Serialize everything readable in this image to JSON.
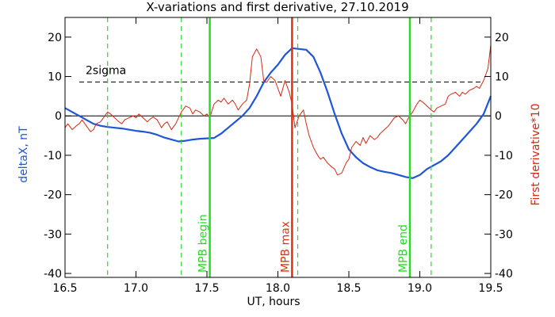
{
  "chart_data": {
    "type": "line",
    "title": "X-variations and first derivative, 27.10.2019",
    "xlabel": "UT, hours",
    "ylabel_left": "deltaX, nT",
    "ylabel_right": "First derivative*10",
    "xlim": [
      16.5,
      19.5
    ],
    "ylim": [
      -41,
      25
    ],
    "xticks": [
      16.5,
      17.0,
      17.5,
      18.0,
      18.5,
      19.0,
      19.5
    ],
    "xtick_labels": [
      "16.5",
      "17.0",
      "17.5",
      "18.0",
      "18.5",
      "19.0",
      "19.5"
    ],
    "yticks": [
      20,
      10,
      0,
      -10,
      -20,
      -30,
      -40
    ],
    "ytick_labels": [
      "20",
      "10",
      "0",
      "-10",
      "-20",
      "-30",
      "-40"
    ],
    "grid": false,
    "colors": {
      "deltaX": "#1f55d6",
      "derivative": "#d42a10",
      "mpb": "#22dd22",
      "mpb_max": "#e03010",
      "axes": "#000000"
    },
    "sigma": {
      "value": 8.6,
      "label": "2sigma"
    },
    "zero_line": 0,
    "vertical_lines": [
      {
        "x": 17.52,
        "label": "MPB begin",
        "style": "solid",
        "color": "#22dd22"
      },
      {
        "x": 18.1,
        "label": "MPB max",
        "style": "solid",
        "color": "#e03010"
      },
      {
        "x": 18.93,
        "label": "MPB end",
        "style": "solid",
        "color": "#22dd22"
      },
      {
        "x": 16.8,
        "label": "",
        "style": "dashed",
        "color": "#22dd22"
      },
      {
        "x": 17.32,
        "label": "",
        "style": "dashed",
        "color": "#22dd22"
      },
      {
        "x": 18.14,
        "label": "",
        "style": "dashed",
        "color": "#22dd22"
      },
      {
        "x": 19.08,
        "label": "",
        "style": "dashed",
        "color": "#22dd22"
      }
    ],
    "series": [
      {
        "key": "deltaX",
        "x": [
          16.5,
          16.55,
          16.6,
          16.65,
          16.7,
          16.75,
          16.8,
          16.85,
          16.9,
          16.95,
          17.0,
          17.05,
          17.1,
          17.15,
          17.2,
          17.25,
          17.3,
          17.35,
          17.4,
          17.45,
          17.5,
          17.55,
          17.6,
          17.65,
          17.7,
          17.75,
          17.8,
          17.85,
          17.9,
          17.95,
          18.0,
          18.05,
          18.1,
          18.15,
          18.2,
          18.25,
          18.3,
          18.35,
          18.4,
          18.45,
          18.5,
          18.55,
          18.6,
          18.65,
          18.7,
          18.75,
          18.8,
          18.85,
          18.9,
          18.95,
          19.0,
          19.05,
          19.1,
          19.15,
          19.2,
          19.25,
          19.3,
          19.35,
          19.4,
          19.45,
          19.5
        ],
        "values": [
          2.0,
          1.0,
          0.0,
          -1.0,
          -2.0,
          -2.5,
          -2.8,
          -3.0,
          -3.2,
          -3.5,
          -3.8,
          -4.0,
          -4.3,
          -4.8,
          -5.5,
          -6.0,
          -6.5,
          -6.3,
          -6.0,
          -5.8,
          -5.7,
          -5.6,
          -4.5,
          -3.0,
          -1.5,
          0.0,
          2.0,
          5.0,
          8.5,
          11.0,
          13.0,
          15.5,
          17.2,
          17.0,
          16.8,
          15.0,
          11.0,
          6.0,
          0.5,
          -4.5,
          -8.5,
          -10.5,
          -12.0,
          -13.0,
          -13.8,
          -14.2,
          -14.5,
          -15.0,
          -15.5,
          -15.8,
          -15.0,
          -13.5,
          -12.5,
          -11.5,
          -10.0,
          -8.0,
          -6.0,
          -4.0,
          -2.0,
          0.5,
          5.0
        ]
      },
      {
        "key": "derivative",
        "x": [
          16.5,
          16.52,
          16.55,
          16.58,
          16.6,
          16.62,
          16.65,
          16.68,
          16.7,
          16.72,
          16.75,
          16.78,
          16.8,
          16.82,
          16.85,
          16.88,
          16.9,
          16.92,
          16.95,
          16.98,
          17.0,
          17.02,
          17.05,
          17.08,
          17.1,
          17.12,
          17.15,
          17.18,
          17.2,
          17.22,
          17.25,
          17.28,
          17.3,
          17.32,
          17.35,
          17.38,
          17.4,
          17.42,
          17.45,
          17.48,
          17.5,
          17.52,
          17.55,
          17.58,
          17.6,
          17.62,
          17.65,
          17.68,
          17.7,
          17.72,
          17.75,
          17.78,
          17.8,
          17.82,
          17.85,
          17.88,
          17.9,
          17.92,
          17.95,
          17.98,
          18.0,
          18.02,
          18.05,
          18.08,
          18.1,
          18.12,
          18.15,
          18.18,
          18.2,
          18.22,
          18.25,
          18.28,
          18.3,
          18.32,
          18.35,
          18.38,
          18.4,
          18.42,
          18.45,
          18.48,
          18.5,
          18.52,
          18.55,
          18.58,
          18.6,
          18.62,
          18.65,
          18.68,
          18.7,
          18.72,
          18.75,
          18.78,
          18.8,
          18.82,
          18.85,
          18.88,
          18.9,
          18.92,
          18.95,
          18.98,
          19.0,
          19.02,
          19.05,
          19.08,
          19.1,
          19.12,
          19.15,
          19.18,
          19.2,
          19.22,
          19.25,
          19.28,
          19.3,
          19.32,
          19.35,
          19.38,
          19.4,
          19.42,
          19.45,
          19.48,
          19.5
        ],
        "values": [
          -3.0,
          -2.0,
          -3.5,
          -2.5,
          -2.0,
          -1.0,
          -2.5,
          -4.0,
          -3.5,
          -2.0,
          -1.5,
          0.0,
          1.0,
          0.5,
          -0.5,
          -1.5,
          -2.0,
          -1.0,
          -0.5,
          0.0,
          -0.5,
          0.5,
          -0.5,
          -1.5,
          -0.8,
          -0.3,
          -1.0,
          -3.0,
          -2.0,
          -1.5,
          -3.5,
          -2.0,
          -0.5,
          1.0,
          2.5,
          2.0,
          0.5,
          1.5,
          1.0,
          0.0,
          0.5,
          -0.5,
          3.0,
          4.0,
          3.5,
          4.5,
          3.0,
          4.0,
          3.0,
          1.5,
          3.0,
          4.0,
          8.0,
          15.0,
          17.0,
          15.0,
          9.0,
          8.5,
          10.0,
          9.0,
          7.0,
          5.0,
          9.0,
          6.0,
          3.0,
          -3.0,
          0.0,
          1.5,
          -2.0,
          -5.0,
          -8.0,
          -10.0,
          -11.0,
          -10.5,
          -12.0,
          -13.0,
          -13.5,
          -15.0,
          -14.5,
          -12.0,
          -11.0,
          -8.0,
          -6.5,
          -7.5,
          -5.5,
          -7.0,
          -5.0,
          -6.0,
          -5.5,
          -4.5,
          -3.5,
          -2.5,
          -1.5,
          -0.5,
          0.0,
          -1.0,
          -2.0,
          -0.5,
          1.0,
          3.0,
          4.0,
          3.5,
          2.5,
          1.5,
          1.0,
          2.0,
          2.5,
          3.0,
          5.0,
          5.5,
          6.0,
          5.0,
          6.0,
          5.5,
          6.5,
          7.0,
          7.5,
          7.0,
          9.0,
          12.0,
          18.0
        ]
      }
    ]
  }
}
